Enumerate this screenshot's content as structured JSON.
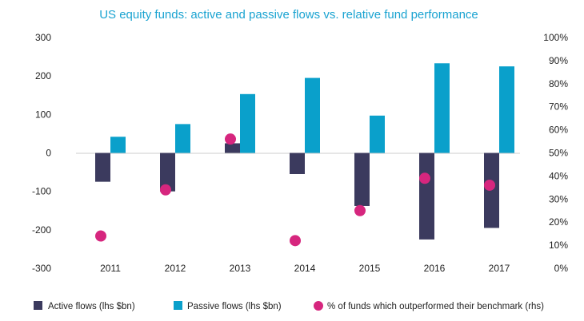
{
  "colors": {
    "title": "#1aa3d1",
    "active": "#3b3a5e",
    "passive": "#0aa0cb",
    "dot": "#d6267e",
    "axis": "#cccccc"
  },
  "chart_data": {
    "type": "bar",
    "title": "US equity funds: active and passive flows vs. relative fund performance",
    "categories": [
      "2011",
      "2012",
      "2013",
      "2014",
      "2015",
      "2016",
      "2017"
    ],
    "y_left": {
      "ticks": [
        "300",
        "200",
        "100",
        "0",
        "-100",
        "-200",
        "-300"
      ],
      "ylim": [
        -300,
        300
      ]
    },
    "y_right": {
      "ticks": [
        "100%",
        "90%",
        "80%",
        "70%",
        "60%",
        "50%",
        "40%",
        "30%",
        "20%",
        "10%",
        "0%"
      ],
      "ylim": [
        0,
        100
      ]
    },
    "grid": false,
    "legend_position": "bottom",
    "series": [
      {
        "name": "Active flows (lhs $bn)",
        "axis": "left",
        "kind": "bar",
        "color": "#3b3a5e",
        "values": [
          -75,
          -100,
          25,
          -55,
          -138,
          -225,
          -195
        ]
      },
      {
        "name": "Passive flows (lhs $bn)",
        "axis": "left",
        "kind": "bar",
        "color": "#0aa0cb",
        "values": [
          42,
          75,
          153,
          195,
          97,
          233,
          225
        ]
      },
      {
        "name": "% of funds which outperformed their benchmark (rhs)",
        "axis": "right",
        "kind": "scatter",
        "color": "#d6267e",
        "values": [
          14,
          34,
          56,
          12,
          25,
          39,
          36
        ]
      }
    ]
  }
}
